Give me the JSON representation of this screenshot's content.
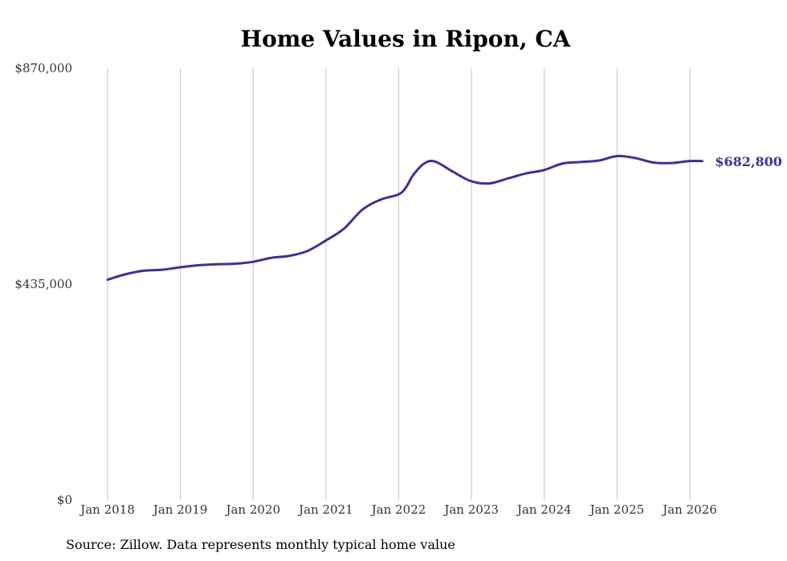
{
  "chart_data": {
    "type": "line",
    "title": "Home Values in Ripon, CA",
    "source_note": "Source: Zillow. Data represents monthly typical home value",
    "xlabel": "",
    "ylabel": "",
    "ylim": [
      0,
      870000
    ],
    "y_ticks": [
      {
        "value": 0,
        "label": "$0"
      },
      {
        "value": 435000,
        "label": "$435,000"
      },
      {
        "value": 870000,
        "label": "$870,000"
      }
    ],
    "x_ticks": [
      {
        "value": 2018.0,
        "label": "Jan 2018"
      },
      {
        "value": 2019.0,
        "label": "Jan 2019"
      },
      {
        "value": 2020.0,
        "label": "Jan 2020"
      },
      {
        "value": 2021.0,
        "label": "Jan 2021"
      },
      {
        "value": 2022.0,
        "label": "Jan 2022"
      },
      {
        "value": 2023.0,
        "label": "Jan 2023"
      },
      {
        "value": 2024.0,
        "label": "Jan 2024"
      },
      {
        "value": 2025.0,
        "label": "Jan 2025"
      },
      {
        "value": 2026.0,
        "label": "Jan 2026"
      }
    ],
    "grid": "vertical",
    "line_color": "#3d3290",
    "end_label": "$682,800",
    "series": [
      {
        "name": "Typical home value",
        "points": [
          [
            2018.0,
            444000
          ],
          [
            2018.25,
            455000
          ],
          [
            2018.5,
            462000
          ],
          [
            2018.75,
            464000
          ],
          [
            2019.0,
            469000
          ],
          [
            2019.25,
            473000
          ],
          [
            2019.5,
            475000
          ],
          [
            2019.75,
            476000
          ],
          [
            2020.0,
            480000
          ],
          [
            2020.25,
            488000
          ],
          [
            2020.5,
            492000
          ],
          [
            2020.75,
            502000
          ],
          [
            2021.0,
            523000
          ],
          [
            2021.25,
            547000
          ],
          [
            2021.5,
            585000
          ],
          [
            2021.75,
            605000
          ],
          [
            2022.0,
            616000
          ],
          [
            2022.1,
            630000
          ],
          [
            2022.2,
            655000
          ],
          [
            2022.35,
            678000
          ],
          [
            2022.5,
            682000
          ],
          [
            2022.75,
            661000
          ],
          [
            2023.0,
            642000
          ],
          [
            2023.25,
            638000
          ],
          [
            2023.5,
            648000
          ],
          [
            2023.75,
            658000
          ],
          [
            2024.0,
            665000
          ],
          [
            2024.25,
            678000
          ],
          [
            2024.5,
            681000
          ],
          [
            2024.75,
            684000
          ],
          [
            2025.0,
            693000
          ],
          [
            2025.25,
            689000
          ],
          [
            2025.5,
            680000
          ],
          [
            2025.75,
            679000
          ],
          [
            2026.0,
            683000
          ],
          [
            2026.17,
            682800
          ]
        ]
      }
    ]
  }
}
